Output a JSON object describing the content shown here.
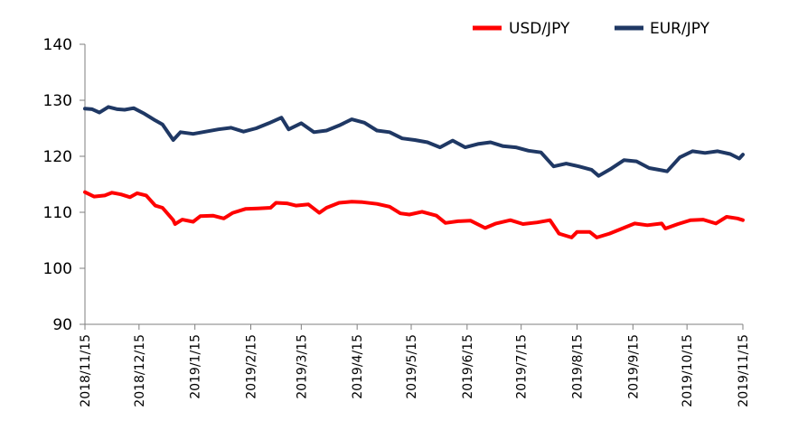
{
  "chart_data": {
    "type": "line",
    "title": "",
    "xlabel": "",
    "ylabel": "",
    "ylim": [
      90,
      140
    ],
    "yticks": [
      90,
      100,
      110,
      120,
      130,
      140
    ],
    "x_range": [
      "2018-11-15",
      "2019-11-15"
    ],
    "x_tick_labels": [
      "2018/11/15",
      "2018/12/15",
      "2019/1/15",
      "2019/2/15",
      "2019/3/15",
      "2019/4/15",
      "2019/5/15",
      "2019/6/15",
      "2019/7/15",
      "2019/8/15",
      "2019/9/15",
      "2019/10/15",
      "2019/11/15"
    ],
    "legend_position": "top-right",
    "grid": false,
    "series": [
      {
        "name": "USD/JPY",
        "color": "#ff0000",
        "points": [
          [
            "2018-11-15",
            113.6
          ],
          [
            "2018-11-20",
            112.8
          ],
          [
            "2018-11-26",
            113.0
          ],
          [
            "2018-11-30",
            113.5
          ],
          [
            "2018-12-05",
            113.2
          ],
          [
            "2018-12-10",
            112.7
          ],
          [
            "2018-12-14",
            113.4
          ],
          [
            "2018-12-19",
            113.0
          ],
          [
            "2018-12-24",
            111.2
          ],
          [
            "2018-12-28",
            110.8
          ],
          [
            "2019-01-03",
            108.6
          ],
          [
            "2019-01-04",
            107.9
          ],
          [
            "2019-01-08",
            108.7
          ],
          [
            "2019-01-14",
            108.3
          ],
          [
            "2019-01-18",
            109.3
          ],
          [
            "2019-01-25",
            109.4
          ],
          [
            "2019-01-31",
            108.9
          ],
          [
            "2019-02-05",
            109.9
          ],
          [
            "2019-02-12",
            110.6
          ],
          [
            "2019-02-19",
            110.7
          ],
          [
            "2019-02-26",
            110.8
          ],
          [
            "2019-03-01",
            111.7
          ],
          [
            "2019-03-07",
            111.6
          ],
          [
            "2019-03-12",
            111.2
          ],
          [
            "2019-03-19",
            111.4
          ],
          [
            "2019-03-25",
            109.9
          ],
          [
            "2019-03-29",
            110.8
          ],
          [
            "2019-04-05",
            111.7
          ],
          [
            "2019-04-12",
            111.9
          ],
          [
            "2019-04-18",
            111.8
          ],
          [
            "2019-04-26",
            111.5
          ],
          [
            "2019-05-03",
            111.0
          ],
          [
            "2019-05-09",
            109.8
          ],
          [
            "2019-05-14",
            109.6
          ],
          [
            "2019-05-21",
            110.1
          ],
          [
            "2019-05-29",
            109.4
          ],
          [
            "2019-06-03",
            108.1
          ],
          [
            "2019-06-10",
            108.4
          ],
          [
            "2019-06-17",
            108.5
          ],
          [
            "2019-06-25",
            107.2
          ],
          [
            "2019-07-01",
            108.0
          ],
          [
            "2019-07-09",
            108.6
          ],
          [
            "2019-07-16",
            107.9
          ],
          [
            "2019-07-24",
            108.2
          ],
          [
            "2019-07-31",
            108.6
          ],
          [
            "2019-08-05",
            106.2
          ],
          [
            "2019-08-12",
            105.5
          ],
          [
            "2019-08-15",
            106.5
          ],
          [
            "2019-08-22",
            106.5
          ],
          [
            "2019-08-26",
            105.5
          ],
          [
            "2019-09-02",
            106.2
          ],
          [
            "2019-09-09",
            107.1
          ],
          [
            "2019-09-16",
            108.0
          ],
          [
            "2019-09-23",
            107.7
          ],
          [
            "2019-10-01",
            108.0
          ],
          [
            "2019-10-03",
            107.1
          ],
          [
            "2019-10-10",
            107.9
          ],
          [
            "2019-10-17",
            108.6
          ],
          [
            "2019-10-24",
            108.7
          ],
          [
            "2019-10-31",
            108.0
          ],
          [
            "2019-11-06",
            109.2
          ],
          [
            "2019-11-12",
            108.9
          ],
          [
            "2019-11-15",
            108.6
          ]
        ]
      },
      {
        "name": "EUR/JPY",
        "color": "#1f3864",
        "points": [
          [
            "2018-11-15",
            128.5
          ],
          [
            "2018-11-19",
            128.4
          ],
          [
            "2018-11-23",
            127.8
          ],
          [
            "2018-11-28",
            128.8
          ],
          [
            "2018-12-03",
            128.4
          ],
          [
            "2018-12-07",
            128.3
          ],
          [
            "2018-12-12",
            128.6
          ],
          [
            "2018-12-18",
            127.6
          ],
          [
            "2018-12-24",
            126.4
          ],
          [
            "2018-12-28",
            125.7
          ],
          [
            "2019-01-03",
            122.9
          ],
          [
            "2019-01-07",
            124.3
          ],
          [
            "2019-01-14",
            124.0
          ],
          [
            "2019-01-21",
            124.4
          ],
          [
            "2019-01-28",
            124.8
          ],
          [
            "2019-02-04",
            125.1
          ],
          [
            "2019-02-11",
            124.4
          ],
          [
            "2019-02-18",
            125.0
          ],
          [
            "2019-02-25",
            125.9
          ],
          [
            "2019-03-04",
            126.9
          ],
          [
            "2019-03-08",
            124.8
          ],
          [
            "2019-03-15",
            125.9
          ],
          [
            "2019-03-22",
            124.3
          ],
          [
            "2019-03-29",
            124.6
          ],
          [
            "2019-04-05",
            125.5
          ],
          [
            "2019-04-12",
            126.6
          ],
          [
            "2019-04-19",
            126.0
          ],
          [
            "2019-04-26",
            124.6
          ],
          [
            "2019-05-03",
            124.3
          ],
          [
            "2019-05-10",
            123.2
          ],
          [
            "2019-05-17",
            122.9
          ],
          [
            "2019-05-24",
            122.5
          ],
          [
            "2019-05-31",
            121.6
          ],
          [
            "2019-06-07",
            122.8
          ],
          [
            "2019-06-14",
            121.6
          ],
          [
            "2019-06-21",
            122.2
          ],
          [
            "2019-06-28",
            122.5
          ],
          [
            "2019-07-05",
            121.8
          ],
          [
            "2019-07-12",
            121.6
          ],
          [
            "2019-07-19",
            121.0
          ],
          [
            "2019-07-26",
            120.7
          ],
          [
            "2019-08-02",
            118.2
          ],
          [
            "2019-08-09",
            118.7
          ],
          [
            "2019-08-16",
            118.2
          ],
          [
            "2019-08-23",
            117.6
          ],
          [
            "2019-08-27",
            116.5
          ],
          [
            "2019-09-03",
            117.8
          ],
          [
            "2019-09-10",
            119.3
          ],
          [
            "2019-09-17",
            119.1
          ],
          [
            "2019-09-24",
            117.9
          ],
          [
            "2019-10-01",
            117.5
          ],
          [
            "2019-10-04",
            117.3
          ],
          [
            "2019-10-11",
            119.8
          ],
          [
            "2019-10-18",
            120.9
          ],
          [
            "2019-10-25",
            120.6
          ],
          [
            "2019-11-01",
            120.9
          ],
          [
            "2019-11-08",
            120.4
          ],
          [
            "2019-11-13",
            119.6
          ],
          [
            "2019-11-15",
            120.3
          ]
        ]
      }
    ]
  }
}
